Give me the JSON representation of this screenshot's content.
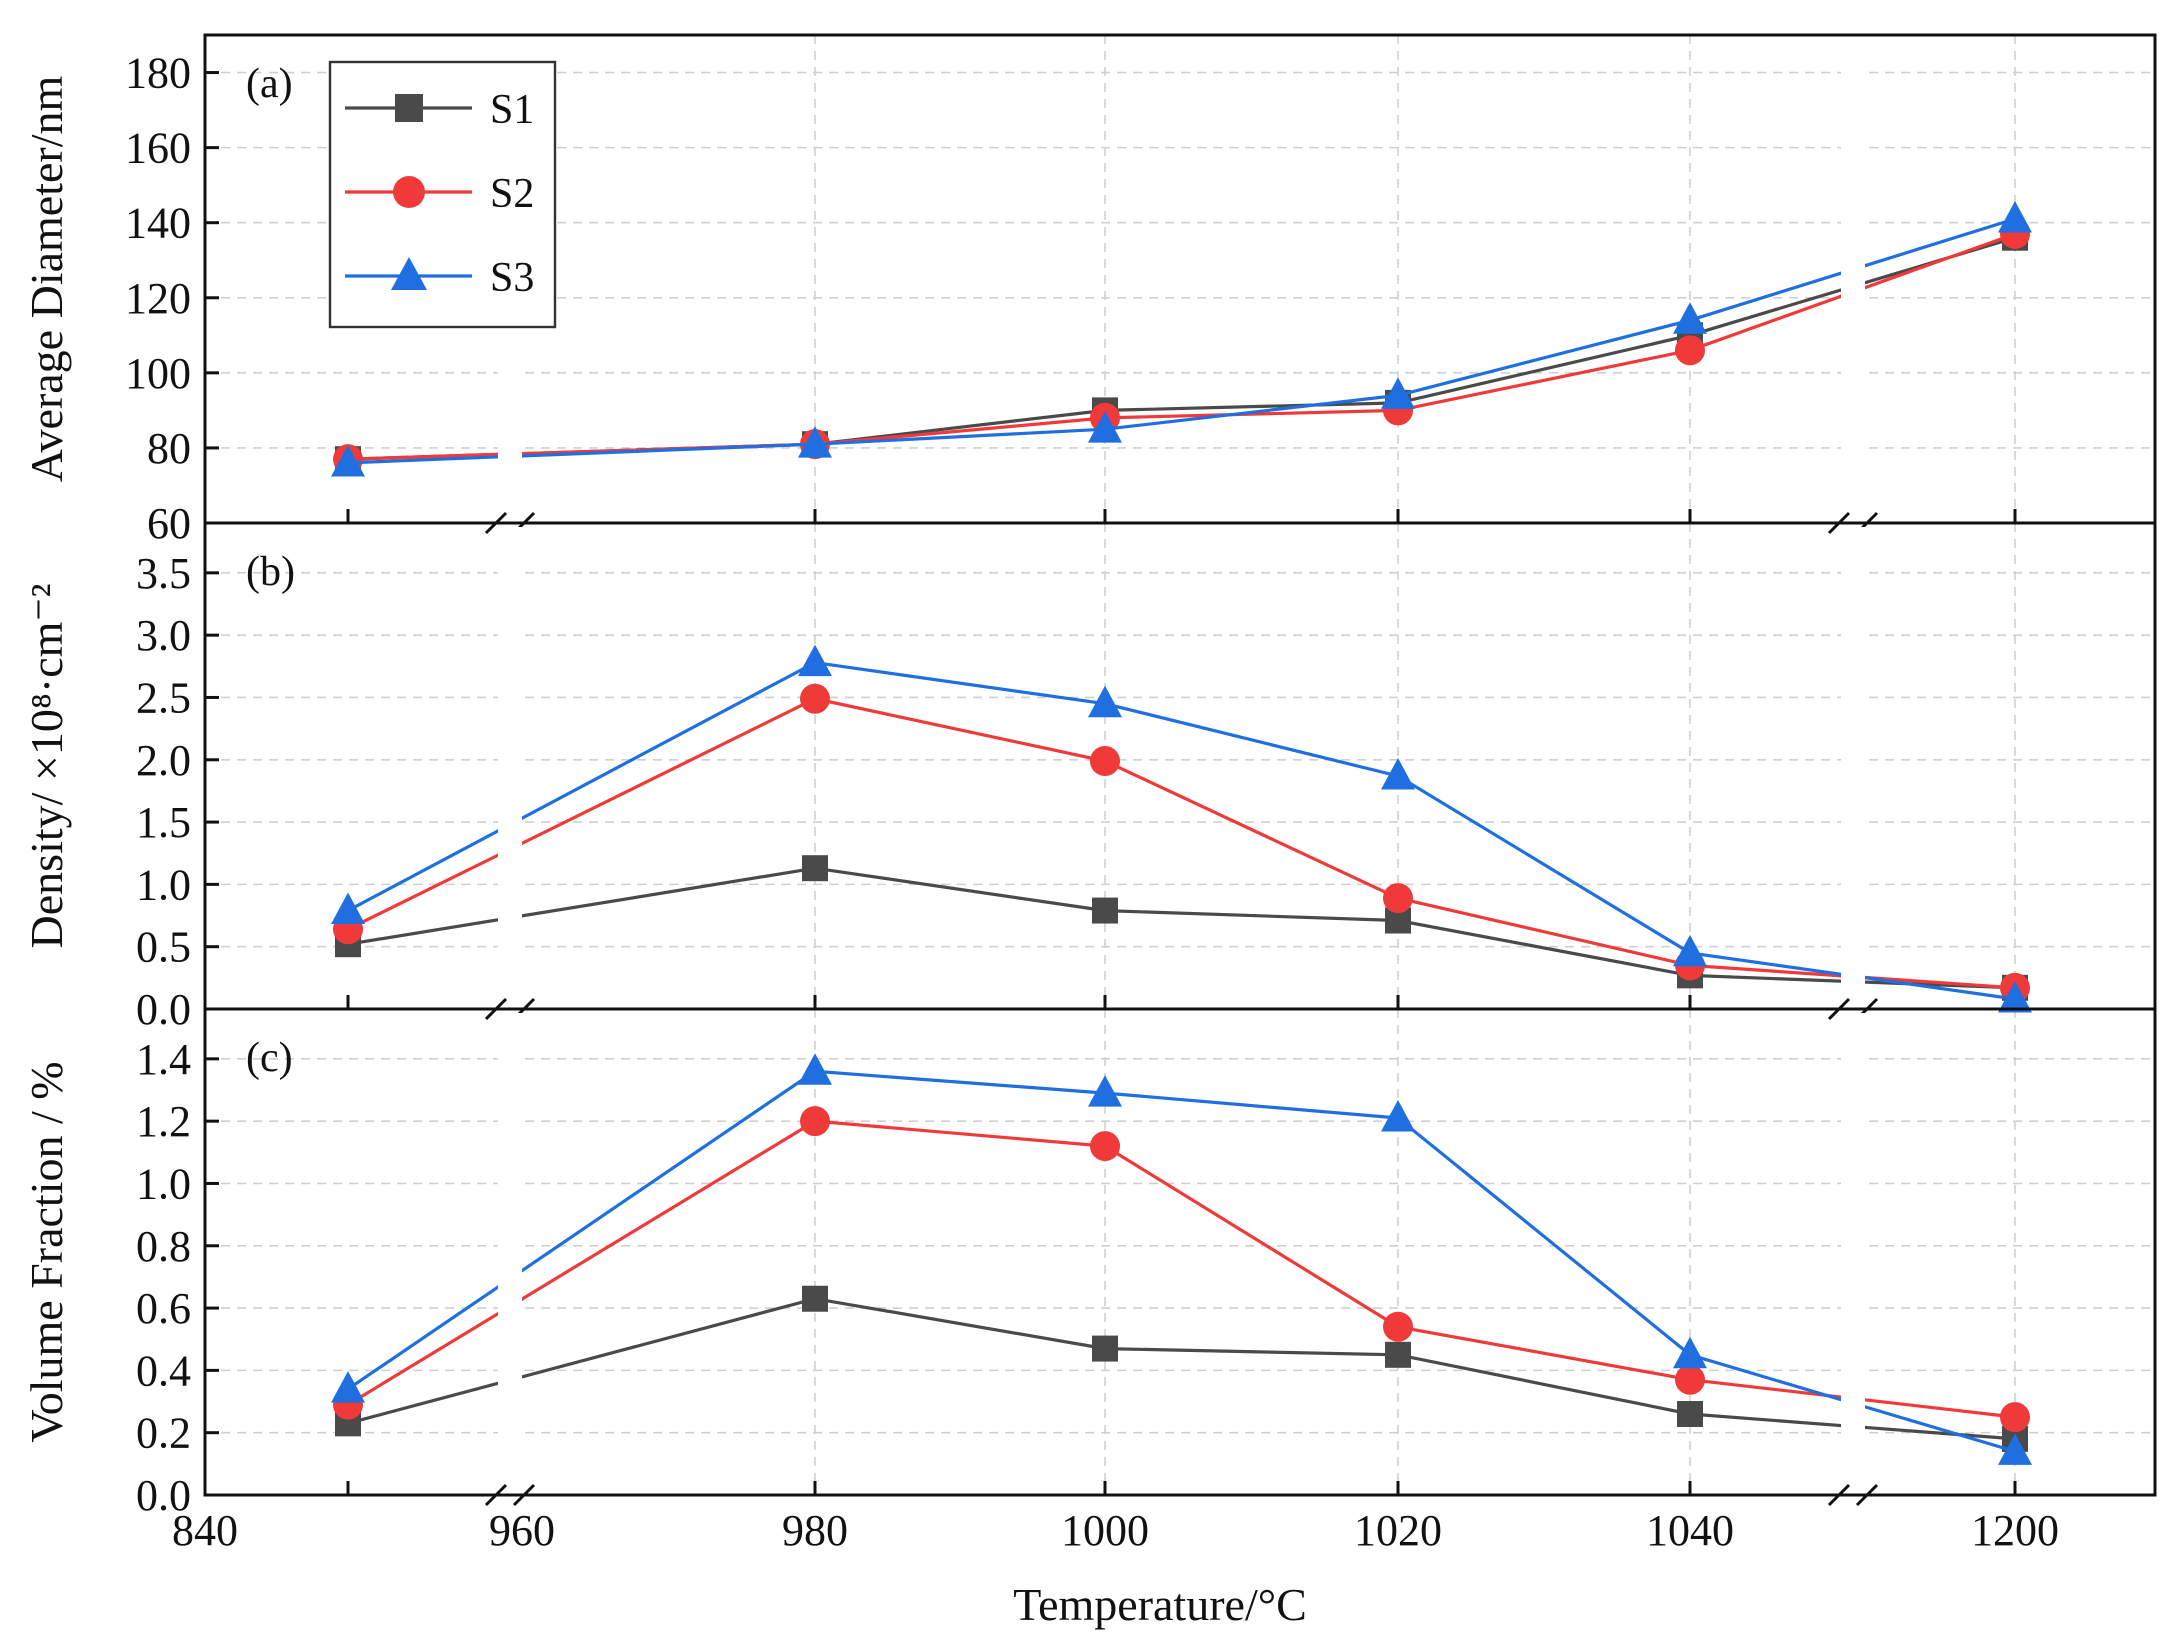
{
  "colors": {
    "S1": "#4a4a4a",
    "S2": "#f03a3a",
    "S3": "#1f6fe0"
  },
  "markers": {
    "S1": "square",
    "S2": "circle",
    "S3": "triangle"
  },
  "chart_data": {
    "type": "line",
    "xlabel": "Temperature/°C",
    "x_tick_labels": [
      "840",
      "960",
      "980",
      "1000",
      "1020",
      "1040",
      "1200"
    ],
    "x_positions": [
      "850",
      "980",
      "1000",
      "1020",
      "1040",
      "1200"
    ],
    "axis_breaks": [
      "between 850 and 960",
      "between 1040 and 1200"
    ],
    "legend": {
      "entries": [
        "S1",
        "S2",
        "S3"
      ],
      "placement": "top-left of panel (a)"
    },
    "panels": [
      {
        "tag": "(a)",
        "ylabel": "Average Diameter/nm",
        "ylim": [
          60,
          190
        ],
        "y_ticks": [
          "60",
          "80",
          "100",
          "120",
          "140",
          "160",
          "180"
        ],
        "series": [
          {
            "name": "S1",
            "values": [
              77,
              81,
              90,
              92,
              110,
              136
            ]
          },
          {
            "name": "S2",
            "values": [
              77,
              81,
              88,
              90,
              106,
              137
            ]
          },
          {
            "name": "S3",
            "values": [
              76,
              81,
              85,
              94,
              114,
              141
            ]
          }
        ]
      },
      {
        "tag": "(b)",
        "ylabel": "Density/ ×10⁸·cm⁻²",
        "ylim": [
          0,
          3.9
        ],
        "y_ticks": [
          "0.0",
          "0.5",
          "1.0",
          "1.5",
          "2.0",
          "2.5",
          "3.0",
          "3.5"
        ],
        "series": [
          {
            "name": "S1",
            "values": [
              0.52,
              1.13,
              0.79,
              0.71,
              0.27,
              0.17
            ]
          },
          {
            "name": "S2",
            "values": [
              0.64,
              2.49,
              1.99,
              0.89,
              0.35,
              0.17
            ]
          },
          {
            "name": "S3",
            "values": [
              0.79,
              2.78,
              2.45,
              1.87,
              0.45,
              0.08
            ]
          }
        ]
      },
      {
        "tag": "(c)",
        "ylabel": "Volume Fraction / %",
        "ylim": [
          0,
          1.56
        ],
        "y_ticks": [
          "0.0",
          "0.2",
          "0.4",
          "0.6",
          "0.8",
          "1.0",
          "1.2",
          "1.4"
        ],
        "series": [
          {
            "name": "S1",
            "values": [
              0.23,
              0.63,
              0.47,
              0.45,
              0.26,
              0.18
            ]
          },
          {
            "name": "S2",
            "values": [
              0.29,
              1.2,
              1.12,
              0.54,
              0.37,
              0.25
            ]
          },
          {
            "name": "S3",
            "values": [
              0.34,
              1.36,
              1.29,
              1.21,
              0.45,
              0.14
            ]
          }
        ]
      }
    ]
  }
}
